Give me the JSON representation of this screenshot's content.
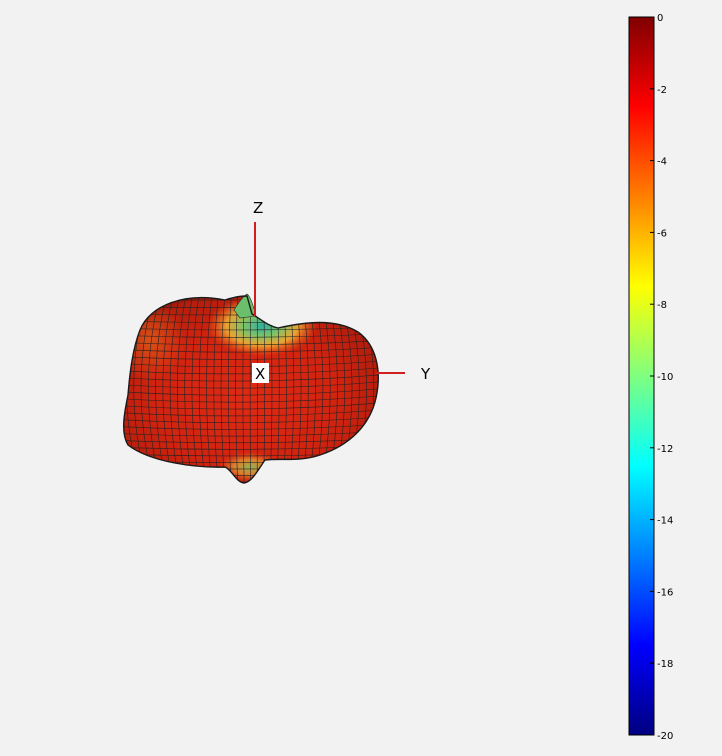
{
  "chart_data": {
    "type": "heatmap",
    "subtype": "3d-radiation-pattern",
    "title": "",
    "axes": {
      "z_label": "Z",
      "y_label": "Y",
      "x_label": "X"
    },
    "colorbar": {
      "placement": "right",
      "min": -20,
      "max": 0,
      "colormap": "jet",
      "ticks": [
        0,
        -2,
        -4,
        -6,
        -8,
        -10,
        -12,
        -14,
        -16,
        -18,
        -20
      ],
      "tick_labels": [
        "0",
        "-2",
        "-4",
        "-6",
        "-8",
        "-10",
        "-12",
        "-14",
        "-16",
        "-18",
        "-20"
      ]
    },
    "axis_line_color": "#d11f1f",
    "mesh_line_color": "#222222"
  }
}
